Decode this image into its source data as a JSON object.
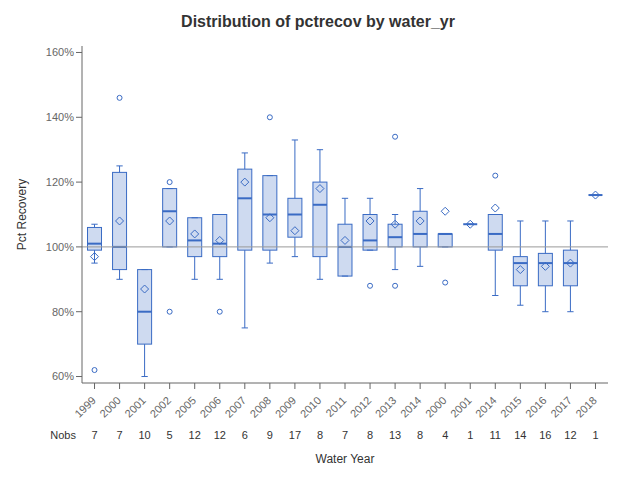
{
  "chart_data": {
    "type": "box",
    "title": "Distribution of pctrecov by water_yr",
    "xlabel": "Water Year",
    "ylabel": "Pct Recovery",
    "ylim": [
      58,
      162
    ],
    "yticks": [
      {
        "value": 60,
        "label": "60%"
      },
      {
        "value": 80,
        "label": "80%"
      },
      {
        "value": 100,
        "label": "100%"
      },
      {
        "value": 120,
        "label": "120%"
      },
      {
        "value": 140,
        "label": "140%"
      },
      {
        "value": 160,
        "label": "160%"
      }
    ],
    "reference_line": 100,
    "color": "#3a6bc4",
    "grid": false,
    "categories": [
      "1999",
      "2000",
      "2001",
      "2002",
      "2005",
      "2006",
      "2007",
      "2008",
      "2009",
      "2010",
      "2011",
      "2012",
      "2013",
      "2014",
      "2000",
      "2001",
      "2014",
      "2015",
      "2016",
      "2017",
      "2018"
    ],
    "nobs_title": "Nobs",
    "nobs": [
      7,
      7,
      10,
      5,
      12,
      12,
      6,
      9,
      17,
      8,
      7,
      8,
      13,
      8,
      4,
      1,
      11,
      14,
      16,
      12,
      1
    ],
    "boxes": [
      {
        "q1": 99,
        "median": 101,
        "q3": 106,
        "whislo": 95,
        "whishi": 107,
        "mean": 97,
        "fliers": [
          62
        ]
      },
      {
        "q1": 93,
        "median": 100,
        "q3": 123,
        "whislo": 90,
        "whishi": 125,
        "mean": 108,
        "fliers": [
          146
        ]
      },
      {
        "q1": 70,
        "median": 80,
        "q3": 93,
        "whislo": 60,
        "whishi": 93,
        "mean": 87,
        "fliers": []
      },
      {
        "q1": 100,
        "median": 111,
        "q3": 118,
        "whislo": 100,
        "whishi": 118,
        "mean": 108,
        "fliers": [
          80,
          120
        ]
      },
      {
        "q1": 97,
        "median": 102,
        "q3": 109,
        "whislo": 90,
        "whishi": 109,
        "mean": 104,
        "fliers": []
      },
      {
        "q1": 97,
        "median": 101,
        "q3": 110,
        "whislo": 90,
        "whishi": 110,
        "mean": 102,
        "fliers": [
          80
        ]
      },
      {
        "q1": 99,
        "median": 115,
        "q3": 124,
        "whislo": 75,
        "whishi": 129,
        "mean": 120,
        "fliers": []
      },
      {
        "q1": 99,
        "median": 110,
        "q3": 122,
        "whislo": 95,
        "whishi": 122,
        "mean": 109,
        "fliers": [
          140
        ]
      },
      {
        "q1": 103,
        "median": 110,
        "q3": 115,
        "whislo": 97,
        "whishi": 133,
        "mean": 105,
        "fliers": []
      },
      {
        "q1": 97,
        "median": 113,
        "q3": 120,
        "whislo": 90,
        "whishi": 130,
        "mean": 118,
        "fliers": []
      },
      {
        "q1": 91,
        "median": 100,
        "q3": 107,
        "whislo": 91,
        "whishi": 115,
        "mean": 102,
        "fliers": []
      },
      {
        "q1": 99,
        "median": 102,
        "q3": 110,
        "whislo": 99,
        "whishi": 115,
        "mean": 108,
        "fliers": [
          88
        ]
      },
      {
        "q1": 100,
        "median": 103,
        "q3": 107,
        "whislo": 93,
        "whishi": 110,
        "mean": 107,
        "fliers": [
          88,
          134
        ]
      },
      {
        "q1": 100,
        "median": 104,
        "q3": 111,
        "whislo": 94,
        "whishi": 118,
        "mean": 108,
        "fliers": []
      },
      {
        "q1": 100,
        "median": 104,
        "q3": 104,
        "whislo": 100,
        "whishi": 104,
        "mean": 111,
        "fliers": [
          89
        ]
      },
      {
        "q1": 107,
        "median": 107,
        "q3": 107,
        "whislo": 107,
        "whishi": 107,
        "mean": 107,
        "fliers": []
      },
      {
        "q1": 99,
        "median": 104,
        "q3": 110,
        "whislo": 85,
        "whishi": 110,
        "mean": 112,
        "fliers": [
          122
        ]
      },
      {
        "q1": 88,
        "median": 95,
        "q3": 97,
        "whislo": 82,
        "whishi": 108,
        "mean": 93,
        "fliers": []
      },
      {
        "q1": 88,
        "median": 95,
        "q3": 98,
        "whislo": 80,
        "whishi": 108,
        "mean": 94,
        "fliers": []
      },
      {
        "q1": 88,
        "median": 95,
        "q3": 99,
        "whislo": 80,
        "whishi": 108,
        "mean": 95,
        "fliers": []
      },
      {
        "q1": 116,
        "median": 116,
        "q3": 116,
        "whislo": 116,
        "whishi": 116,
        "mean": 116,
        "fliers": []
      }
    ]
  }
}
